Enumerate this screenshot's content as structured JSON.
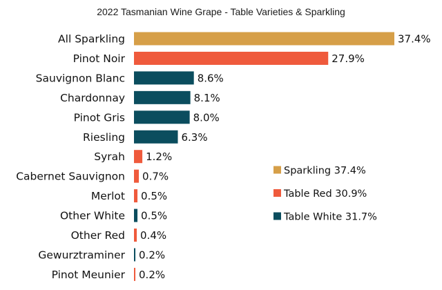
{
  "chart_data": {
    "type": "bar",
    "orientation": "horizontal",
    "title": "2022 Tasmanian Wine Grape - Table Varieties & Sparkling",
    "categories": [
      "All Sparkling",
      "Pinot Noir",
      "Sauvignon Blanc",
      "Chardonnay",
      "Pinot Gris",
      "Riesling",
      "Syrah",
      "Cabernet Sauvignon",
      "Merlot",
      "Other White",
      "Other Red",
      "Gewurztraminer",
      "Pinot Meunier"
    ],
    "values": [
      37.4,
      27.9,
      8.6,
      8.1,
      8.0,
      6.3,
      1.2,
      0.7,
      0.5,
      0.5,
      0.4,
      0.2,
      0.2
    ],
    "value_labels": [
      "37.4%",
      "27.9%",
      "8.6%",
      "8.1%",
      "8.0%",
      "6.3%",
      "1.2%",
      "0.7%",
      "0.5%",
      "0.5%",
      "0.4%",
      "0.2%",
      "0.2%"
    ],
    "groups": [
      "Sparkling",
      "Table Red",
      "Table White",
      "Table White",
      "Table White",
      "Table White",
      "Table Red",
      "Table Red",
      "Table Red",
      "Table White",
      "Table Red",
      "Table White",
      "Table Red"
    ],
    "group_colors": {
      "Sparkling": "#d69f48",
      "Table Red": "#ef5a3c",
      "Table White": "#0b4d5e"
    },
    "legend": [
      {
        "group": "Sparkling",
        "label": "Sparkling 37.4%"
      },
      {
        "group": "Table Red",
        "label": "Table Red 30.9%"
      },
      {
        "group": "Table White",
        "label": "Table White 31.7%"
      }
    ],
    "legend_position": "center-right",
    "xlim": [
      0,
      37.4
    ],
    "grid": false
  }
}
